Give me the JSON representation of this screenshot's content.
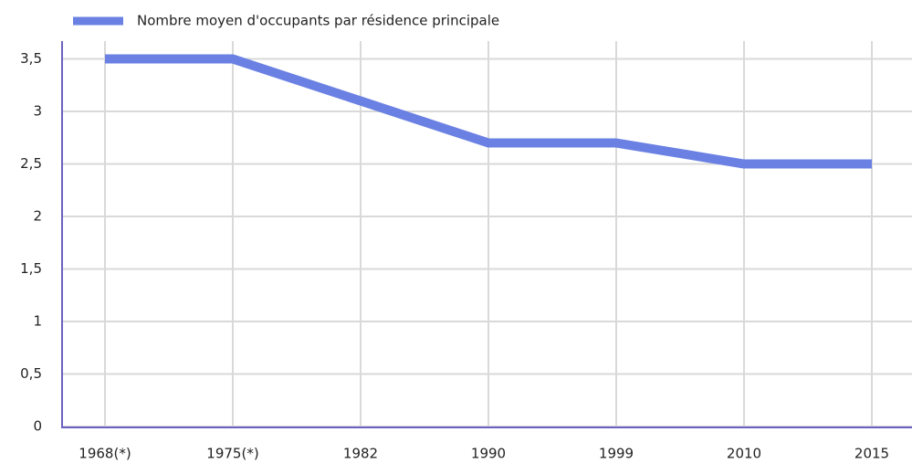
{
  "chart_data": {
    "type": "line",
    "categories": [
      "1968(*)",
      "1975(*)",
      "1982",
      "1990",
      "1999",
      "2010",
      "2015"
    ],
    "series": [
      {
        "name": "Nombre moyen d'occupants par résidence principale",
        "color": "#6a80e3",
        "values": [
          3.5,
          3.5,
          3.1,
          2.7,
          2.7,
          2.5,
          2.5
        ]
      }
    ],
    "ylim": [
      0,
      3.67
    ],
    "yticks": [
      0,
      {
        "value": 0.5,
        "label": "0,5"
      },
      1,
      {
        "value": 1.5,
        "label": "1,5"
      },
      2,
      {
        "value": 2.5,
        "label": "2,5"
      },
      3,
      {
        "value": 3.5,
        "label": "3,5"
      }
    ],
    "grid": true,
    "legend": "top"
  }
}
